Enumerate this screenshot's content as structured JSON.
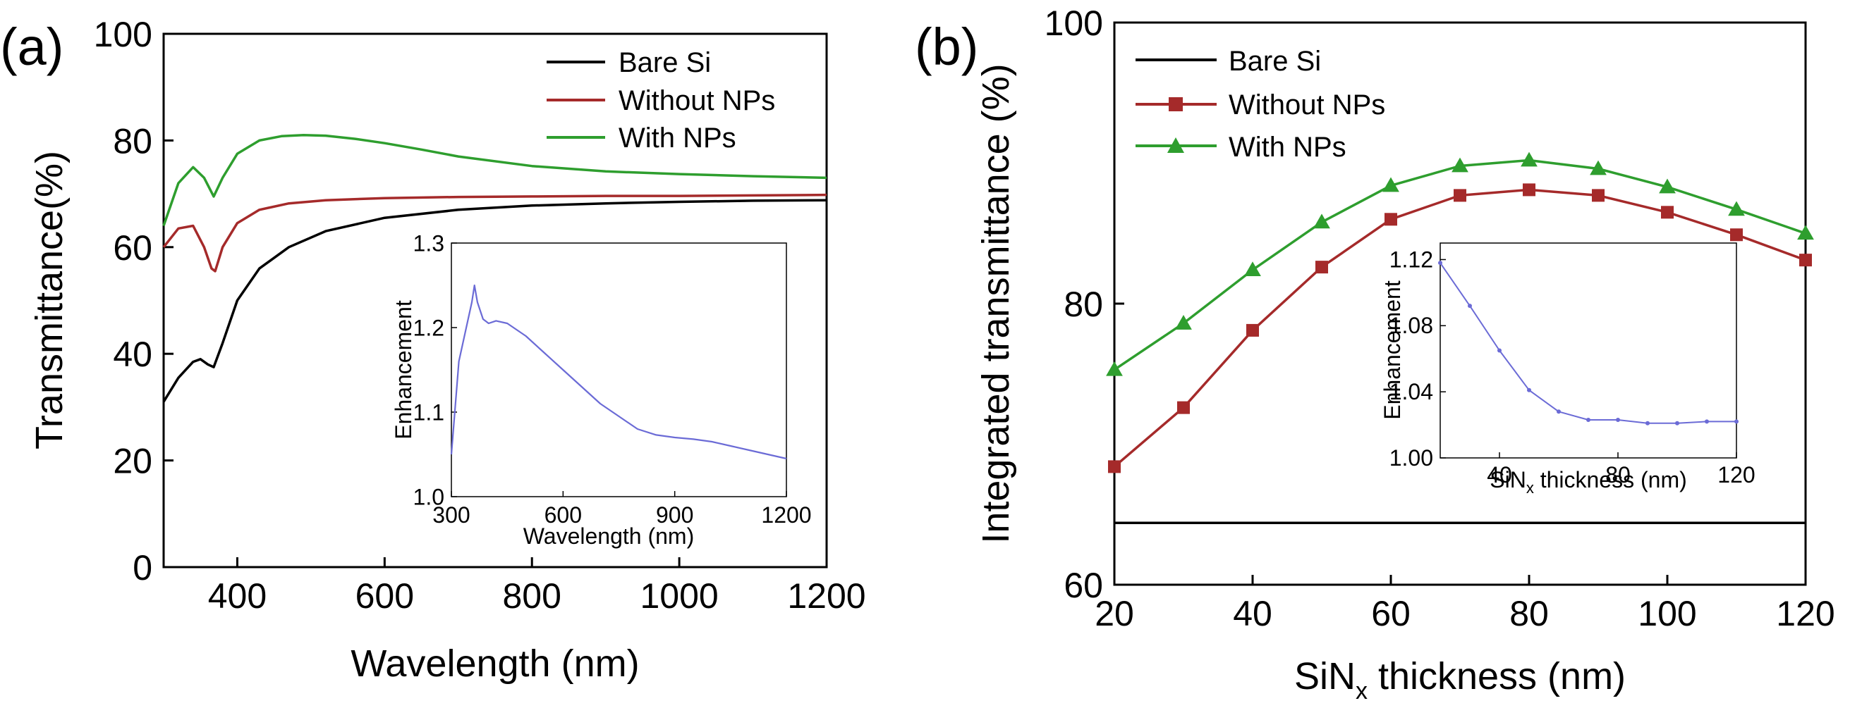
{
  "chart_data": [
    {
      "panel_label": "(a)",
      "type": "line",
      "xlabel": "Wavelength (nm)",
      "ylabel": "Transmittance(%)",
      "xlim": [
        300,
        1200
      ],
      "ylim": [
        0,
        100
      ],
      "xticks": [
        400,
        600,
        800,
        1000,
        1200
      ],
      "yticks": [
        0,
        20,
        40,
        60,
        80,
        100
      ],
      "legend": "top-right",
      "series": [
        {
          "name": "Bare Si",
          "color": "#000000",
          "x": [
            300,
            320,
            340,
            350,
            360,
            368,
            380,
            400,
            430,
            470,
            520,
            600,
            700,
            800,
            900,
            1000,
            1100,
            1200
          ],
          "y": [
            31,
            35.5,
            38.5,
            39,
            38,
            37.5,
            42,
            50,
            56,
            60,
            63,
            65.5,
            67,
            67.8,
            68.2,
            68.5,
            68.7,
            68.8
          ]
        },
        {
          "name": "Without NPs",
          "color": "#a52a2a",
          "x": [
            300,
            320,
            340,
            355,
            365,
            370,
            380,
            400,
            430,
            470,
            520,
            600,
            700,
            800,
            900,
            1000,
            1100,
            1200
          ],
          "y": [
            60,
            63.5,
            64,
            60,
            56,
            55.5,
            60,
            64.5,
            67,
            68.2,
            68.8,
            69.2,
            69.4,
            69.5,
            69.6,
            69.6,
            69.7,
            69.8
          ]
        },
        {
          "name": "With NPs",
          "color": "#2e9e2e",
          "x": [
            300,
            320,
            340,
            355,
            368,
            380,
            400,
            430,
            460,
            490,
            520,
            560,
            600,
            650,
            700,
            800,
            900,
            1000,
            1100,
            1200
          ],
          "y": [
            64,
            72,
            75,
            73,
            69.5,
            73,
            77.5,
            80,
            80.8,
            81,
            80.9,
            80.3,
            79.5,
            78.3,
            77,
            75.2,
            74.2,
            73.7,
            73.3,
            73
          ]
        }
      ],
      "inset": {
        "type": "line",
        "xlabel": "Wavelength (nm)",
        "ylabel": "Enhancement",
        "xlim": [
          300,
          1200
        ],
        "ylim": [
          1.0,
          1.3
        ],
        "xticks": [
          300,
          600,
          900,
          1200
        ],
        "yticks": [
          1.0,
          1.1,
          1.2,
          1.3
        ],
        "yticklabels": [
          "1.0",
          "1.1",
          "1.2",
          "1.3"
        ],
        "series": [
          {
            "name": "Enhancement",
            "color": "#6b6bd6",
            "x": [
              300,
              320,
              340,
              355,
              362,
              370,
              385,
              400,
              420,
              450,
              500,
              550,
              600,
              650,
              700,
              750,
              800,
              850,
              900,
              950,
              1000,
              1050,
              1100,
              1150,
              1200
            ],
            "y": [
              1.05,
              1.16,
              1.2,
              1.23,
              1.25,
              1.23,
              1.21,
              1.205,
              1.208,
              1.205,
              1.19,
              1.17,
              1.15,
              1.13,
              1.11,
              1.095,
              1.08,
              1.073,
              1.07,
              1.068,
              1.065,
              1.06,
              1.055,
              1.05,
              1.045
            ]
          }
        ]
      }
    },
    {
      "panel_label": "(b)",
      "type": "line",
      "xlabel_main": "SiN",
      "xlabel_sub": "x",
      "xlabel_tail": " thickness (nm)",
      "ylabel": "Integrated transmittance (%)",
      "xlim": [
        20,
        120
      ],
      "ylim": [
        60,
        100
      ],
      "xticks": [
        20,
        40,
        60,
        80,
        100,
        120
      ],
      "yticks": [
        60,
        80,
        100
      ],
      "legend": "top-left",
      "series": [
        {
          "name": "Bare Si",
          "color": "#000000",
          "marker": "none",
          "x": [
            20,
            120
          ],
          "y": [
            64.4,
            64.4
          ]
        },
        {
          "name": "Without NPs",
          "color": "#a52a2a",
          "marker": "square",
          "x": [
            20,
            30,
            40,
            50,
            60,
            70,
            80,
            90,
            100,
            110,
            120
          ],
          "y": [
            68.4,
            72.6,
            78.1,
            82.6,
            86,
            87.7,
            88.1,
            87.7,
            86.5,
            84.9,
            83.1
          ]
        },
        {
          "name": "With NPs",
          "color": "#2e9e2e",
          "marker": "triangle",
          "x": [
            20,
            30,
            40,
            50,
            60,
            70,
            80,
            90,
            100,
            110,
            120
          ],
          "y": [
            75.3,
            78.6,
            82.4,
            85.8,
            88.4,
            89.8,
            90.2,
            89.6,
            88.3,
            86.7,
            85
          ]
        }
      ],
      "inset": {
        "type": "line",
        "xlabel_main": "SiN",
        "xlabel_sub": "x",
        "xlabel_tail": " thickness (nm)",
        "ylabel": "Enhancement",
        "xlim": [
          20,
          120
        ],
        "ylim": [
          1.0,
          1.13
        ],
        "xticks": [
          40,
          80,
          120
        ],
        "yticks": [
          1.0,
          1.04,
          1.08,
          1.12
        ],
        "yticklabels": [
          "1.00",
          "1.04",
          "1.08",
          "1.12"
        ],
        "series": [
          {
            "name": "Enhancement",
            "color": "#6b6bd6",
            "marker": "dot",
            "x": [
              20,
              30,
              40,
              50,
              60,
              70,
              80,
              90,
              100,
              110,
              120
            ],
            "y": [
              1.118,
              1.092,
              1.065,
              1.041,
              1.028,
              1.023,
              1.023,
              1.021,
              1.021,
              1.022,
              1.022
            ]
          }
        ]
      }
    }
  ]
}
